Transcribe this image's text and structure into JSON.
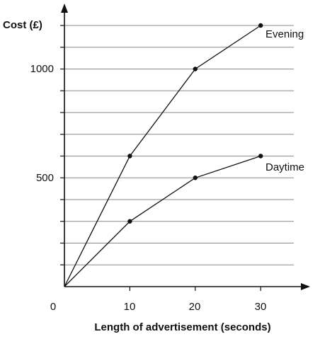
{
  "chart_data": {
    "type": "line",
    "ylabel": "Cost (£)",
    "xlabel": "Length of advertisement (seconds)",
    "xlim": [
      0,
      35
    ],
    "ylim": [
      0,
      1200
    ],
    "x_ticks": [
      10,
      20,
      30
    ],
    "x_tick_labels": [
      "10",
      "20",
      "30"
    ],
    "origin_label": "0",
    "y_ticks": [
      500,
      1000
    ],
    "y_tick_labels": [
      "500",
      "1000"
    ],
    "grid": true,
    "grid_step_y": 100,
    "series": [
      {
        "name": "Evening",
        "x": [
          0,
          10,
          20,
          30
        ],
        "y": [
          0,
          600,
          1000,
          1200
        ]
      },
      {
        "name": "Daytime",
        "x": [
          0,
          10,
          20,
          30
        ],
        "y": [
          0,
          300,
          500,
          600
        ]
      }
    ]
  }
}
